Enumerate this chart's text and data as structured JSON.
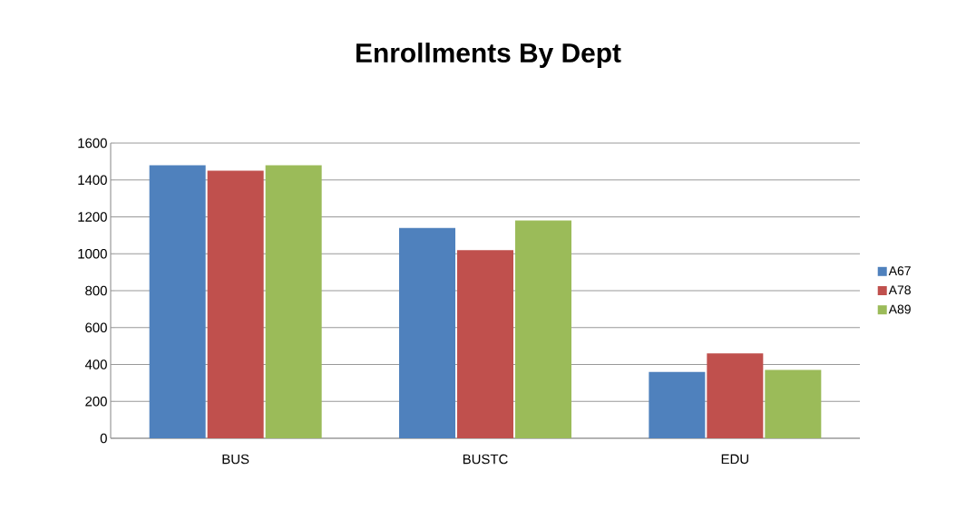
{
  "chart_data": {
    "type": "bar",
    "title": "Enrollments By Dept",
    "categories": [
      "BUS",
      "BUSTC",
      "EDU"
    ],
    "series": [
      {
        "name": "A67",
        "color": "#4f81bd",
        "values": [
          1480,
          1140,
          360
        ]
      },
      {
        "name": "A78",
        "color": "#c0504d",
        "values": [
          1450,
          1020,
          460
        ]
      },
      {
        "name": "A89",
        "color": "#9bbb59",
        "values": [
          1480,
          1180,
          370
        ]
      }
    ],
    "ylim": [
      0,
      1600
    ],
    "yticks": [
      0,
      200,
      400,
      600,
      800,
      1000,
      1200,
      1400,
      1600
    ],
    "grid": "y",
    "legend": "right"
  }
}
